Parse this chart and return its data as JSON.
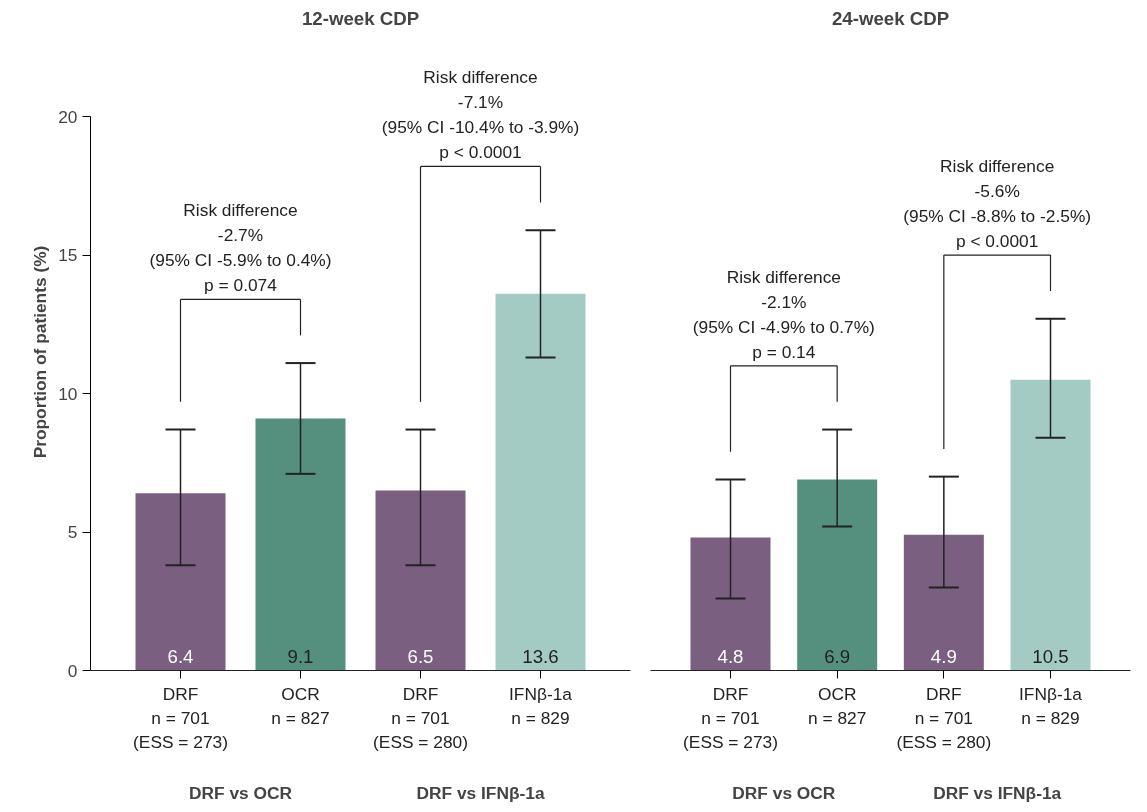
{
  "chart_data": [
    {
      "type": "bar",
      "title": "12-week CDP",
      "ylabel": "Proportion of patients (%)",
      "categories": [
        "DRF\nn = 701\n(ESS = 273)",
        "OCR\nn = 827",
        "DRF\nn = 701\n(ESS = 280)",
        "IFNβ-1a\nn = 829"
      ],
      "values": [
        6.4,
        9.1,
        6.5,
        13.6
      ],
      "colors": [
        "#7a5f80",
        "#55907f",
        "#7a5f80",
        "#a4cbc3"
      ],
      "errors": [
        [
          3.8,
          8.7
        ],
        [
          7.1,
          11.1
        ],
        [
          3.8,
          8.7
        ],
        [
          11.3,
          15.9
        ]
      ],
      "data_labels": true,
      "ylim": [
        0,
        20
      ],
      "yticks": [
        0,
        5,
        10,
        15,
        20
      ],
      "grid": false,
      "annotations": [
        "Risk difference\n-2.7%\n(95% CI -5.9% to 0.4%)\np = 0.074",
        "Risk difference\n-7.1%\n(95% CI -10.4% to -3.9%)\np < 0.0001",
        "DRF vs OCR",
        "DRF vs IFNβ-1a"
      ]
    },
    {
      "type": "bar",
      "title": "24-week CDP",
      "categories": [
        "DRF\nn = 701\n(ESS = 273)",
        "OCR\nn = 827",
        "DRF\nn = 701\n(ESS = 280)",
        "IFNβ-1a\nn = 829"
      ],
      "values": [
        4.8,
        6.9,
        4.9,
        10.5
      ],
      "colors": [
        "#7a5f80",
        "#55907f",
        "#7a5f80",
        "#a4cbc3"
      ],
      "errors": [
        [
          2.6,
          6.9
        ],
        [
          5.2,
          8.7
        ],
        [
          3.0,
          7.0
        ],
        [
          8.4,
          12.7
        ]
      ],
      "data_labels": true,
      "ylim": [
        0,
        20
      ],
      "yticks": [
        0,
        5,
        10,
        15,
        20
      ],
      "grid": false,
      "tick_labels": "x",
      "annotations": [
        "Risk difference\n-2.1%\n(95% CI -4.9% to 0.7%)\np = 0.14",
        "Risk difference\n-5.6%\n(95% CI -8.8% to -2.5%)\np < 0.0001",
        "DRF vs OCR",
        "DRF vs IFNβ-1a"
      ]
    }
  ]
}
